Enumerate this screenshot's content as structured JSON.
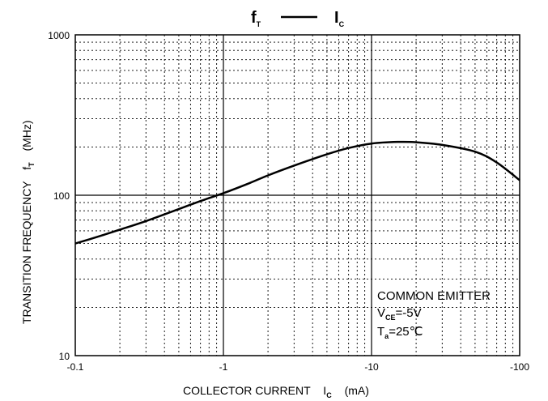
{
  "chart_data": {
    "type": "line",
    "x_scale": "log",
    "y_scale": "log",
    "x_reversed_sign": true,
    "xlim": [
      -0.1,
      -100
    ],
    "ylim": [
      10,
      1000
    ],
    "x_ticks": [
      "-0.1",
      "-1",
      "-10",
      "-100"
    ],
    "y_ticks": [
      "10",
      "100",
      "1000"
    ],
    "grid": true,
    "title": {
      "main": "f",
      "main_sub": "T",
      "sep": "—",
      "vs": "I",
      "vs_sub": "C"
    },
    "xlabel": {
      "text": "COLLECTOR CURRENT",
      "sym": "I",
      "sub": "C",
      "unit": "(mA)"
    },
    "ylabel": {
      "text": "TRANSITION FREQUENCY",
      "sym": "f",
      "sub": "T",
      "unit": "(MHz)"
    },
    "annotation": {
      "line1": "COMMON EMITTER",
      "line2_sym": "V",
      "line2_sub": "CE",
      "line2_val": "=-5V",
      "line3_sym": "T",
      "line3_sub": "a",
      "line3_val": "=25℃"
    },
    "series": [
      {
        "x": [
          -0.1,
          -0.15,
          -0.2,
          -0.3,
          -0.5,
          -0.7,
          -1.0,
          -1.5,
          -2.0,
          -3.0,
          -5.0,
          -7.0,
          -10,
          -15,
          -20,
          -30,
          -50,
          -70,
          -100
        ],
        "y": [
          50,
          56,
          61,
          69,
          82,
          92,
          103,
          119,
          133,
          153,
          180,
          197,
          210,
          215,
          214,
          206,
          187,
          160,
          124
        ]
      }
    ]
  }
}
